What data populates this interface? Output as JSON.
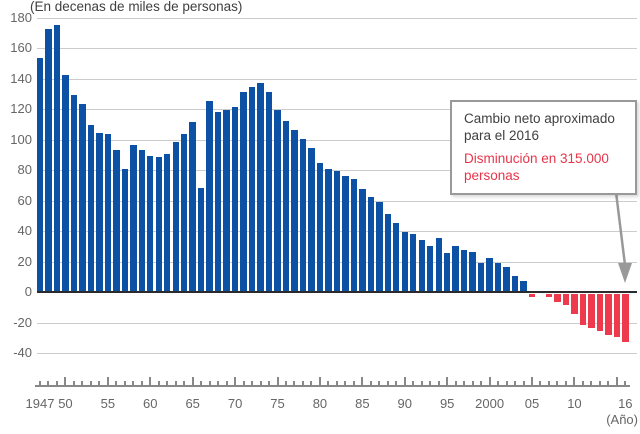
{
  "chart_data": {
    "type": "bar",
    "title": "(En decenas de miles de personas)",
    "x_axis_unit": "(Año)",
    "ylim": [
      -40,
      180
    ],
    "grid": true,
    "y_ticks": [
      180,
      160,
      140,
      120,
      100,
      80,
      60,
      40,
      20,
      0,
      -20,
      -40
    ],
    "y_tick_labels": [
      "180",
      "160",
      "140",
      "120",
      "100",
      "80",
      "60",
      "40",
      "20",
      "0",
      "-20",
      "-40"
    ],
    "years": [
      1947,
      1948,
      1949,
      1950,
      1951,
      1952,
      1953,
      1954,
      1955,
      1956,
      1957,
      1958,
      1959,
      1960,
      1961,
      1962,
      1963,
      1964,
      1965,
      1966,
      1967,
      1968,
      1969,
      1970,
      1971,
      1972,
      1973,
      1974,
      1975,
      1976,
      1977,
      1978,
      1979,
      1980,
      1981,
      1982,
      1983,
      1984,
      1985,
      1986,
      1987,
      1988,
      1989,
      1990,
      1991,
      1992,
      1993,
      1994,
      1995,
      1996,
      1997,
      1998,
      1999,
      2000,
      2001,
      2002,
      2003,
      2004,
      2005,
      2006,
      2007,
      2008,
      2009,
      2010,
      2011,
      2012,
      2013,
      2014,
      2015,
      2016
    ],
    "values": [
      154,
      173,
      176,
      143,
      130,
      124,
      110,
      105,
      104,
      94,
      81,
      97,
      94,
      90,
      89,
      91,
      99,
      104,
      112,
      69,
      126,
      119,
      120,
      122,
      132,
      135,
      138,
      132,
      120,
      113,
      107,
      101,
      95,
      85,
      81,
      80,
      77,
      75,
      68,
      63,
      60,
      52,
      46,
      40,
      39,
      35,
      31,
      36,
      26,
      31,
      28,
      27,
      20,
      23,
      20,
      17,
      11,
      8,
      -2,
      1,
      -2,
      -5,
      -7,
      -13,
      -20,
      -22,
      -24,
      -27,
      -28,
      -31.5
    ],
    "x_tick_labels": [
      {
        "year": 1947,
        "label": "1947"
      },
      {
        "year": 1950,
        "label": "50"
      },
      {
        "year": 1955,
        "label": "55"
      },
      {
        "year": 1960,
        "label": "60"
      },
      {
        "year": 1965,
        "label": "65"
      },
      {
        "year": 1970,
        "label": "70"
      },
      {
        "year": 1975,
        "label": "75"
      },
      {
        "year": 1980,
        "label": "80"
      },
      {
        "year": 1985,
        "label": "85"
      },
      {
        "year": 1990,
        "label": "90"
      },
      {
        "year": 1995,
        "label": "95"
      },
      {
        "year": 2000,
        "label": "2000"
      },
      {
        "year": 2005,
        "label": "05"
      },
      {
        "year": 2010,
        "label": "10"
      },
      {
        "year": 2016,
        "label": "16"
      }
    ],
    "colors": {
      "positive_bar": "#0c51a3",
      "negative_bar": "#ee3a4d",
      "gridline": "#cccccc",
      "zero_line": "#2b2b2b",
      "axis": "#888888",
      "label_text": "#666666",
      "annotation_text": "#404040",
      "annotation_accent": "#e8354a",
      "annotation_border": "#999999",
      "arrow": "#999999"
    },
    "annotation": {
      "line1": "Cambio neto aproximado para el 2016",
      "line2": "Disminución en 315.000 personas"
    }
  }
}
